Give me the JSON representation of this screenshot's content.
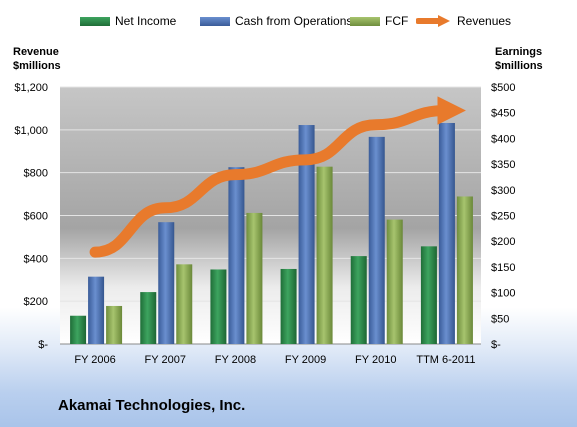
{
  "legend": {
    "net_income": "Net Income",
    "cash_from_operations": "Cash from Operations",
    "fcf": "FCF",
    "revenues": "Revenues"
  },
  "left_axis_title": [
    "Revenue",
    "$millions"
  ],
  "right_axis_title": [
    "Earnings",
    "$millions"
  ],
  "company_name": "Akamai Technologies, Inc.",
  "colors": {
    "net_income": "#2a8a4a",
    "cash_from_operations": "#4f75b5",
    "fcf": "#8fae5a",
    "revenues": "#e87a2c"
  },
  "chart_data": {
    "type": "bar",
    "categories": [
      "FY 2006",
      "FY 2007",
      "FY 2008",
      "FY 2009",
      "FY 2010",
      "TTM 6-2011"
    ],
    "left_axis": {
      "ylim": [
        0,
        1200
      ],
      "ticks": [
        0,
        200,
        400,
        600,
        800,
        1000,
        1200
      ],
      "tick_labels": [
        "$-",
        "$200",
        "$400",
        "$600",
        "$800",
        "$1,000",
        "$1,200"
      ]
    },
    "right_axis": {
      "ylim": [
        0,
        500
      ],
      "ticks": [
        0,
        50,
        100,
        150,
        200,
        250,
        300,
        350,
        400,
        450,
        500
      ],
      "tick_labels": [
        "$-",
        "$50",
        "$100",
        "$150",
        "$200",
        "$250",
        "$300",
        "$350",
        "$400",
        "$450",
        "$500"
      ]
    },
    "series": [
      {
        "name": "Net Income",
        "axis": "right",
        "values": [
          55,
          101,
          145,
          146,
          171,
          190
        ]
      },
      {
        "name": "Cash from Operations",
        "axis": "right",
        "values": [
          131,
          237,
          344,
          426,
          403,
          430
        ]
      },
      {
        "name": "FCF",
        "axis": "right",
        "values": [
          74,
          155,
          255,
          345,
          242,
          287
        ]
      },
      {
        "name": "Revenues",
        "axis": "left",
        "type": "line",
        "values": [
          429,
          636,
          791,
          860,
          1024,
          1090
        ]
      }
    ],
    "grid": true
  }
}
